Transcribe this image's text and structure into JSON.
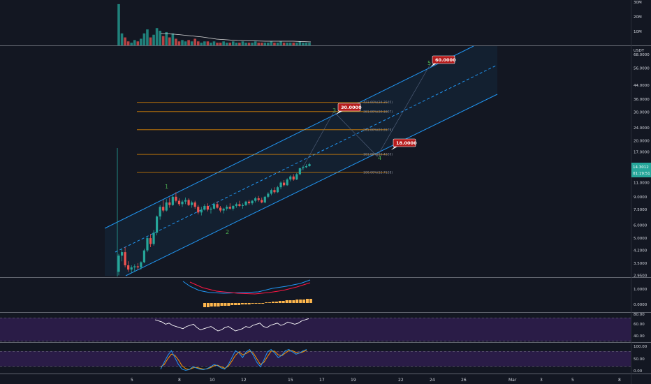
{
  "colors": {
    "background": "#131722",
    "up": "#26a69a",
    "down": "#ef5350",
    "channel": "#2196f3",
    "fib": "#ff9800",
    "wave": "#4caf50",
    "target_bg": "#b71c1c",
    "osc_band": "#2a1c47",
    "macd_fast": "#2196f3",
    "macd_slow": "#ff1744",
    "macd_hist": "#ffb74d",
    "rsi_line": "#ffffff",
    "stoch_k": "#2196f3",
    "stoch_d": "#ff9800",
    "price_label_bg": "#4caf50"
  },
  "volume_axis": [
    "30M",
    "20M",
    "10M"
  ],
  "price_unit": "USDT",
  "price_axis": [
    "68.0000",
    "56.0000",
    "44.0000",
    "36.0000",
    "30.0000",
    "24.0000",
    "20.0000",
    "17.0000",
    "11.0000",
    "9.0000",
    "7.5000",
    "6.0000",
    "5.0000",
    "4.2000",
    "3.5000",
    "2.9500"
  ],
  "current_price": "14.3012",
  "countdown": "01:19:51",
  "macd_axis": [
    "1.0000",
    "0.0000"
  ],
  "rsi_axis": [
    "80.00",
    "60.00",
    "40.00"
  ],
  "stoch_axis": [
    "100.00",
    "50.00",
    "0.00"
  ],
  "time_axis": [
    "5",
    "8",
    "10",
    "12",
    "15",
    "17",
    "19",
    "22",
    "24",
    "26",
    "Mar",
    "3",
    "5",
    "8"
  ],
  "fib_levels": [
    "423.60%(34.3505)",
    "361.80%(30.1807)",
    "261.80%(23.3179)",
    "161.80%(16.4330)",
    "100.00%(12.7138)"
  ],
  "targets": [
    "30.0000",
    "18.0000",
    "60.0000"
  ],
  "wave_labels": [
    "1",
    "2",
    "3",
    "4",
    "5"
  ],
  "chart_data": {
    "type": "candlestick",
    "price_scale": "log",
    "x_range": [
      "3",
      "8 Mar"
    ],
    "y_range": [
      2.9,
      75
    ],
    "candles_ohlc": [
      [
        3.1,
        4.0,
        2.95,
        3.9
      ],
      [
        3.9,
        4.3,
        3.6,
        4.1
      ],
      [
        4.1,
        4.4,
        3.3,
        3.4
      ],
      [
        3.4,
        3.6,
        3.1,
        3.2
      ],
      [
        3.2,
        3.4,
        3.05,
        3.3
      ],
      [
        3.3,
        3.45,
        3.1,
        3.35
      ],
      [
        3.35,
        3.5,
        3.2,
        3.3
      ],
      [
        3.3,
        3.6,
        3.2,
        3.55
      ],
      [
        3.55,
        4.3,
        3.5,
        4.2
      ],
      [
        4.2,
        5.1,
        4.1,
        5.0
      ],
      [
        5.0,
        5.3,
        4.4,
        4.6
      ],
      [
        4.6,
        5.6,
        4.5,
        5.4
      ],
      [
        5.4,
        6.9,
        5.2,
        6.8
      ],
      [
        6.8,
        8.0,
        6.5,
        7.8
      ],
      [
        7.8,
        8.6,
        7.2,
        7.4
      ],
      [
        7.4,
        8.7,
        7.3,
        8.3
      ],
      [
        8.3,
        8.9,
        7.7,
        8.0
      ],
      [
        8.0,
        9.2,
        7.9,
        9.0
      ],
      [
        9.0,
        9.6,
        8.3,
        8.5
      ],
      [
        8.5,
        8.8,
        7.9,
        8.1
      ],
      [
        8.1,
        8.6,
        7.8,
        8.4
      ],
      [
        8.4,
        8.9,
        8.1,
        8.6
      ],
      [
        8.6,
        8.8,
        7.9,
        8.0
      ],
      [
        8.0,
        8.5,
        7.7,
        8.3
      ],
      [
        8.3,
        8.5,
        7.6,
        7.8
      ],
      [
        7.8,
        8.0,
        7.0,
        7.2
      ],
      [
        7.2,
        7.8,
        6.9,
        7.5
      ],
      [
        7.5,
        8.1,
        7.4,
        7.9
      ],
      [
        7.9,
        8.2,
        7.3,
        7.5
      ],
      [
        7.5,
        7.8,
        7.1,
        7.6
      ],
      [
        7.6,
        8.3,
        7.5,
        8.1
      ],
      [
        8.1,
        8.4,
        7.6,
        7.7
      ],
      [
        7.7,
        7.9,
        7.2,
        7.4
      ],
      [
        7.4,
        7.7,
        7.1,
        7.6
      ],
      [
        7.6,
        8.0,
        7.4,
        7.8
      ],
      [
        7.8,
        8.2,
        7.5,
        7.6
      ],
      [
        7.6,
        8.0,
        7.4,
        7.9
      ],
      [
        7.9,
        8.3,
        7.7,
        8.1
      ],
      [
        8.1,
        8.5,
        7.8,
        7.9
      ],
      [
        7.9,
        8.2,
        7.6,
        8.0
      ],
      [
        8.0,
        8.5,
        7.9,
        8.4
      ],
      [
        8.4,
        8.6,
        8.0,
        8.2
      ],
      [
        8.2,
        8.6,
        8.0,
        8.5
      ],
      [
        8.5,
        9.0,
        8.3,
        8.8
      ],
      [
        8.8,
        9.1,
        8.4,
        8.6
      ],
      [
        8.6,
        8.9,
        8.2,
        8.3
      ],
      [
        8.3,
        9.1,
        8.2,
        9.0
      ],
      [
        9.0,
        9.6,
        8.8,
        9.4
      ],
      [
        9.4,
        10.1,
        9.2,
        9.9
      ],
      [
        9.9,
        10.3,
        9.4,
        9.6
      ],
      [
        9.6,
        10.5,
        9.5,
        10.3
      ],
      [
        10.3,
        11.2,
        10.0,
        11.0
      ],
      [
        11.0,
        11.4,
        10.4,
        10.6
      ],
      [
        10.6,
        11.7,
        10.5,
        11.5
      ],
      [
        11.5,
        12.2,
        11.2,
        12.0
      ],
      [
        12.0,
        12.4,
        11.3,
        11.5
      ],
      [
        11.5,
        12.6,
        11.4,
        12.4
      ],
      [
        12.4,
        13.6,
        12.2,
        13.5
      ],
      [
        13.5,
        14.0,
        13.1,
        13.7
      ],
      [
        13.7,
        14.3,
        13.5,
        13.9
      ],
      [
        13.9,
        14.6,
        13.8,
        14.3
      ]
    ],
    "volume_millions": [
      31,
      9,
      6,
      3,
      2,
      4,
      3,
      5,
      9,
      12,
      6,
      8,
      13,
      11,
      7,
      10,
      6,
      9,
      5,
      3,
      4,
      3,
      4,
      3,
      5,
      3,
      2,
      3,
      3,
      2,
      3,
      2,
      2,
      3,
      2,
      2,
      3,
      2,
      2,
      3,
      2,
      2,
      2,
      3,
      2,
      2,
      2,
      2,
      3,
      2,
      2,
      3,
      2,
      2,
      2,
      2,
      2,
      3,
      2,
      2,
      2
    ],
    "channel_pct": {
      "upper": [
        [
          0.16,
          0.0
        ],
        [
          0.72,
          1.0
        ]
      ],
      "lower": [
        [
          0.2,
          0.0
        ],
        [
          0.76,
          1.0
        ]
      ]
    },
    "fib_values": [
      34.3505,
      30.1807,
      23.3179,
      16.433,
      12.7138
    ],
    "targets_values": [
      30,
      18,
      60
    ],
    "macd": {
      "fast_slow_diff_approx": "rising"
    },
    "rsi_range": [
      40,
      80
    ],
    "stoch_range": [
      0,
      100
    ]
  }
}
